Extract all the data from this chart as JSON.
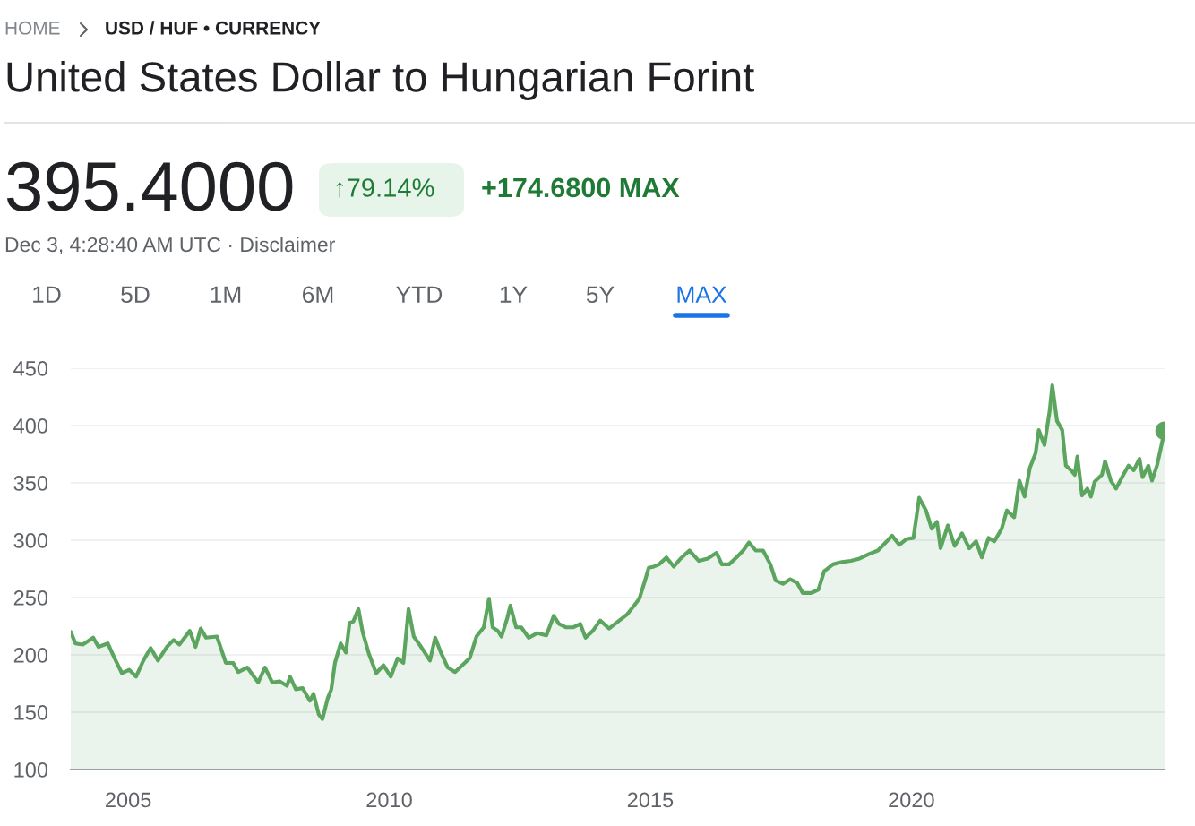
{
  "chart_data": {
    "type": "area",
    "title": "United States Dollar to Hungarian Forint",
    "annotations": [
      "HOME",
      "USD / HUF • CURRENCY",
      "395.4000",
      "↑79.14%",
      "+174.6800 MAX",
      "Dec 3, 4:28:40 AM UTC · Disclaimer",
      "1D",
      "5D",
      "1M",
      "6M",
      "YTD",
      "1Y",
      "5Y",
      "MAX"
    ],
    "series": [
      {
        "color": "#5ba55f",
        "x": [
          2003.9,
          2003.99,
          2004.13,
          2004.33,
          2004.43,
          2004.61,
          2004.74,
          2004.88,
          2005.02,
          2005.15,
          2005.29,
          2005.43,
          2005.57,
          2005.74,
          2005.87,
          2005.98,
          2006.18,
          2006.29,
          2006.39,
          2006.49,
          2006.7,
          2006.87,
          2007.01,
          2007.11,
          2007.28,
          2007.49,
          2007.62,
          2007.76,
          2007.9,
          2008.04,
          2008.1,
          2008.21,
          2008.34,
          2008.48,
          2008.55,
          2008.65,
          2008.72,
          2008.82,
          2008.89,
          2008.96,
          2009.07,
          2009.17,
          2009.24,
          2009.31,
          2009.41,
          2009.49,
          2009.61,
          2009.75,
          2009.89,
          2010.03,
          2010.16,
          2010.27,
          2010.37,
          2010.47,
          2010.61,
          2010.78,
          2010.88,
          2010.99,
          2011.12,
          2011.26,
          2011.4,
          2011.54,
          2011.67,
          2011.81,
          2011.91,
          2011.98,
          2012.08,
          2012.15,
          2012.26,
          2012.32,
          2012.43,
          2012.53,
          2012.67,
          2012.84,
          2013.01,
          2013.15,
          2013.25,
          2013.39,
          2013.52,
          2013.66,
          2013.76,
          2013.9,
          2014.04,
          2014.21,
          2014.38,
          2014.55,
          2014.69,
          2014.79,
          2014.9,
          2014.97,
          2015.07,
          2015.17,
          2015.31,
          2015.45,
          2015.58,
          2015.75,
          2015.93,
          2016.1,
          2016.27,
          2016.37,
          2016.51,
          2016.65,
          2016.78,
          2016.89,
          2017.02,
          2017.16,
          2017.3,
          2017.4,
          2017.54,
          2017.68,
          2017.81,
          2017.92,
          2018.09,
          2018.22,
          2018.33,
          2018.5,
          2018.67,
          2018.84,
          2019.01,
          2019.19,
          2019.36,
          2019.53,
          2019.63,
          2019.77,
          2019.91,
          2020.04,
          2020.15,
          2020.28,
          2020.39,
          2020.49,
          2020.56,
          2020.7,
          2020.83,
          2020.97,
          2021.11,
          2021.24,
          2021.35,
          2021.48,
          2021.59,
          2021.73,
          2021.83,
          2021.97,
          2022.07,
          2022.17,
          2022.27,
          2022.38,
          2022.44,
          2022.55,
          2022.65,
          2022.7,
          2022.79,
          2022.89,
          2022.96,
          2023.06,
          2023.13,
          2023.18,
          2023.27,
          2023.37,
          2023.44,
          2023.51,
          2023.65,
          2023.71,
          2023.82,
          2023.92,
          2024.06,
          2024.16,
          2024.26,
          2024.37,
          2024.43,
          2024.54,
          2024.61,
          2024.71,
          2024.85
        ],
        "values": [
          220,
          210,
          209,
          215,
          207,
          210,
          197,
          184,
          187,
          181,
          195,
          206,
          195,
          207,
          213,
          209,
          221,
          207,
          223,
          215,
          216,
          193,
          193,
          185,
          189,
          176,
          189,
          176,
          177,
          173,
          181,
          170,
          171,
          160,
          166,
          148,
          144,
          162,
          170,
          193,
          210,
          202,
          228,
          229,
          240,
          220,
          201,
          184,
          191,
          181,
          197,
          193,
          240,
          216,
          207,
          195,
          215,
          202,
          189,
          185,
          191,
          197,
          216,
          224,
          249,
          224,
          221,
          216,
          232,
          243,
          224,
          224,
          215,
          219,
          217,
          234,
          227,
          224,
          224,
          227,
          215,
          221,
          230,
          223,
          229,
          235,
          243,
          249,
          265,
          276,
          277,
          279,
          285,
          277,
          284,
          291,
          282,
          284,
          289,
          279,
          279,
          285,
          291,
          298,
          291,
          291,
          279,
          265,
          262,
          266,
          263,
          254,
          254,
          257,
          273,
          279,
          281,
          282,
          284,
          288,
          291,
          299,
          304,
          296,
          301,
          302,
          337,
          326,
          310,
          316,
          293,
          313,
          295,
          306,
          293,
          299,
          285,
          302,
          299,
          310,
          326,
          320,
          352,
          338,
          363,
          376,
          396,
          383,
          413,
          435,
          404,
          396,
          365,
          361,
          357,
          373,
          339,
          345,
          338,
          351,
          357,
          369,
          352,
          345,
          357,
          365,
          361,
          371,
          355,
          365,
          352,
          366,
          395.4
        ]
      },
      {
        "type": "scatter",
        "color": "#5ba55f",
        "marker": "circle",
        "x": [
          2024.85
        ],
        "values": [
          395.4
        ]
      }
    ],
    "xlim": [
      2003.9,
      2024.85
    ],
    "xticks": [
      2005,
      2010,
      2015,
      2020
    ],
    "ylim": [
      100,
      450
    ],
    "yticks": [
      100,
      150,
      200,
      250,
      300,
      350,
      400,
      450
    ],
    "grid": "y"
  }
}
